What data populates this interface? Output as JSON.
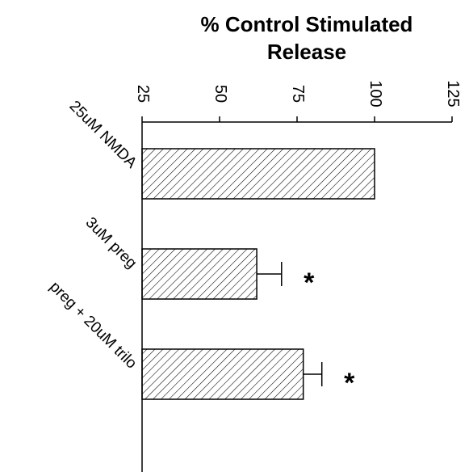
{
  "chart_data": {
    "type": "bar",
    "orientation": "horizontal",
    "title": "% Control Stimulated Release",
    "title_lines": [
      "% Control Stimulated",
      "Release"
    ],
    "categories": [
      "25uM NMDA",
      "3uM preg",
      "preg + 20uM trilo"
    ],
    "values": [
      100,
      62,
      77
    ],
    "errors": [
      0,
      8,
      6
    ],
    "significance": [
      "",
      "*",
      "*"
    ],
    "xlim": [
      25,
      125
    ],
    "ticks": [
      25,
      50,
      75,
      100,
      125
    ],
    "tick_labels": [
      "25",
      "50",
      "75",
      "100",
      "125"
    ],
    "bar_fill": "diagonal-hatch",
    "colors": {
      "bar_stroke": "#000000",
      "hatch": "#000000",
      "background": "#ffffff"
    },
    "grid": false,
    "legend": "none"
  }
}
